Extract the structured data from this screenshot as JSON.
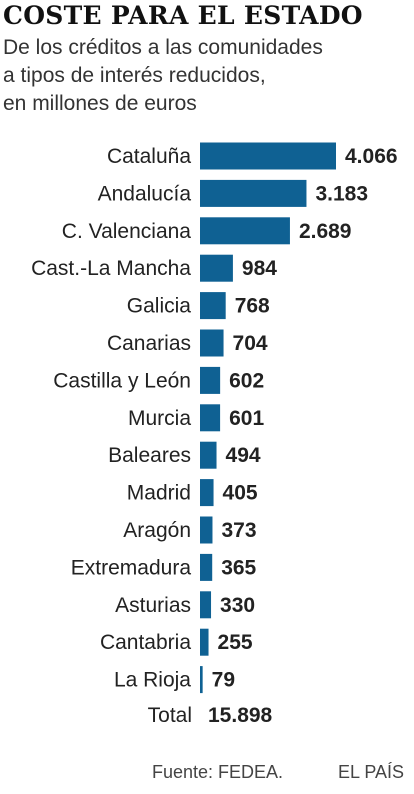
{
  "header": {
    "title": "COSTE PARA EL ESTADO",
    "subtitle_lines": [
      "De los créditos a las comunidades",
      "a tipos de interés reducidos,",
      "en millones de euros"
    ]
  },
  "chart_data": {
    "type": "bar",
    "orientation": "horizontal",
    "title": "COSTE PARA EL ESTADO",
    "subtitle": "De los créditos a las comunidades a tipos de interés reducidos, en millones de euros",
    "categories": [
      "Cataluña",
      "Andalucía",
      "C. Valenciana",
      "Cast.-La Mancha",
      "Galicia",
      "Canarias",
      "Castilla y León",
      "Murcia",
      "Baleares",
      "Madrid",
      "Aragón",
      "Extremadura",
      "Asturias",
      "Cantabria",
      "La Rioja"
    ],
    "values": [
      4066,
      3183,
      2689,
      984,
      768,
      704,
      602,
      601,
      494,
      405,
      373,
      365,
      330,
      255,
      79
    ],
    "value_labels": [
      "4.066",
      "3.183",
      "2.689",
      "984",
      "768",
      "704",
      "602",
      "601",
      "494",
      "405",
      "373",
      "365",
      "330",
      "255",
      "79"
    ],
    "bar_color": "#0f6193",
    "grid": false,
    "legend": "none",
    "total": {
      "label": "Total",
      "value": 15898,
      "value_label": "15.898"
    }
  },
  "footer": {
    "source": "Fuente: FEDEA.",
    "brand": "EL PAÍS"
  }
}
